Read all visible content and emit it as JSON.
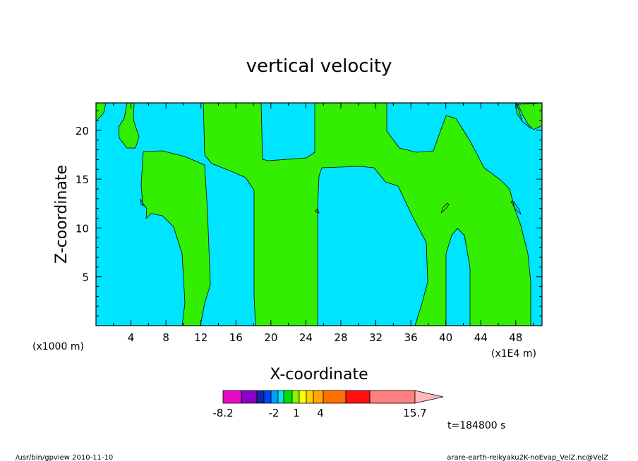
{
  "chart_data": {
    "type": "contour",
    "title": "vertical velocity",
    "xlabel": "X-coordinate",
    "ylabel": "Z-coordinate",
    "x_unit_left": "(x1000 m)",
    "x_unit_right": "(x1E4 m)",
    "xlim": [
      0,
      51
    ],
    "ylim": [
      0,
      22.8
    ],
    "x_ticks": [
      4,
      8,
      12,
      16,
      20,
      24,
      28,
      32,
      36,
      40,
      44,
      48
    ],
    "y_ticks": [
      5,
      10,
      15,
      20
    ],
    "colors": {
      "background": "#00e5ff",
      "positive": "#33ee00"
    },
    "colorbar": {
      "colors": [
        "#e80ac4",
        "#8a00c8",
        "#1222aa",
        "#0044ff",
        "#00a0ff",
        "#00e8ff",
        "#00e000",
        "#8cf000",
        "#ffff00",
        "#ffd000",
        "#ffa800",
        "#ff7000",
        "#ff1010",
        "#ff8080",
        "#ffb8b8"
      ],
      "tick_labels": [
        "-8.2",
        "-2",
        "1",
        "4",
        "15.7"
      ]
    },
    "time_label": "t=184800 s"
  },
  "footer": {
    "left": "/usr/bin/gpview   2010-11-10",
    "right": "arare-earth-reikyaku2K-noEvap_VelZ.nc@VelZ"
  }
}
